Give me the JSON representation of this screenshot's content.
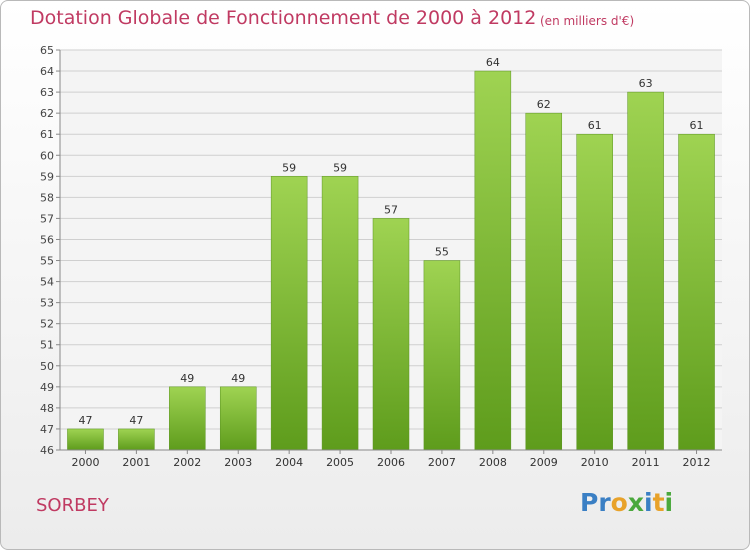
{
  "header": {
    "title": "Dotation Globale de Fonctionnement de 2000 à 2012",
    "subtitle": "(en milliers d'€)"
  },
  "footer": {
    "commune": "SORBEY",
    "logo_text": "Proxiti"
  },
  "colors": {
    "title": "#c03a62",
    "bar_top": "#9fd352",
    "bar_bottom": "#5e9c1c",
    "logo_letters": [
      "#3a7fc4",
      "#3a7fc4",
      "#e8a22a",
      "#4aa83c",
      "#3a7fc4",
      "#e8a22a",
      "#4aa83c"
    ]
  },
  "chart_data": {
    "type": "bar",
    "title": "Dotation Globale de Fonctionnement de 2000 à 2012",
    "subtitle": "(en milliers d'€)",
    "categories": [
      "2000",
      "2001",
      "2002",
      "2003",
      "2004",
      "2005",
      "2006",
      "2007",
      "2008",
      "2009",
      "2010",
      "2011",
      "2012"
    ],
    "values": [
      47,
      47,
      49,
      49,
      59,
      59,
      57,
      55,
      64,
      62,
      61,
      63,
      61
    ],
    "ylim": [
      46,
      65
    ],
    "yticks": [
      46,
      47,
      48,
      49,
      50,
      51,
      52,
      53,
      54,
      55,
      56,
      57,
      58,
      59,
      60,
      61,
      62,
      63,
      64,
      65
    ],
    "grid": true,
    "data_labels": true
  }
}
